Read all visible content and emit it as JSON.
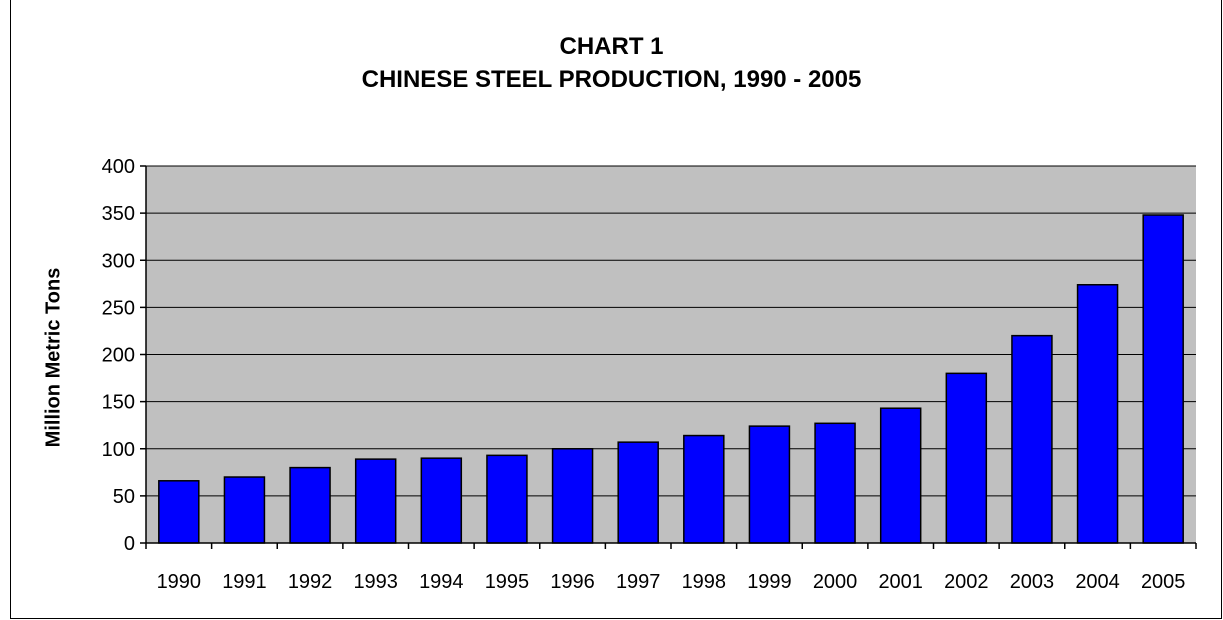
{
  "chart_data": {
    "type": "bar",
    "title": "CHART 1",
    "subtitle": "CHINESE STEEL PRODUCTION, 1990 - 2005",
    "ylabel": "Million Metric Tons",
    "xlabel": "",
    "categories": [
      "1990",
      "1991",
      "1992",
      "1993",
      "1994",
      "1995",
      "1996",
      "1997",
      "1998",
      "1999",
      "2000",
      "2001",
      "2002",
      "2003",
      "2004",
      "2005"
    ],
    "values": [
      66,
      70,
      80,
      89,
      90,
      93,
      100,
      107,
      114,
      124,
      127,
      143,
      180,
      220,
      274,
      348
    ],
    "ylim": [
      0,
      400
    ],
    "yticks": [
      0,
      50,
      100,
      150,
      200,
      250,
      300,
      350,
      400
    ],
    "grid": true,
    "legend": "none",
    "colors": {
      "bar": "#0000ff",
      "plot_background": "#c0c0c0",
      "gridline": "#000000"
    }
  }
}
